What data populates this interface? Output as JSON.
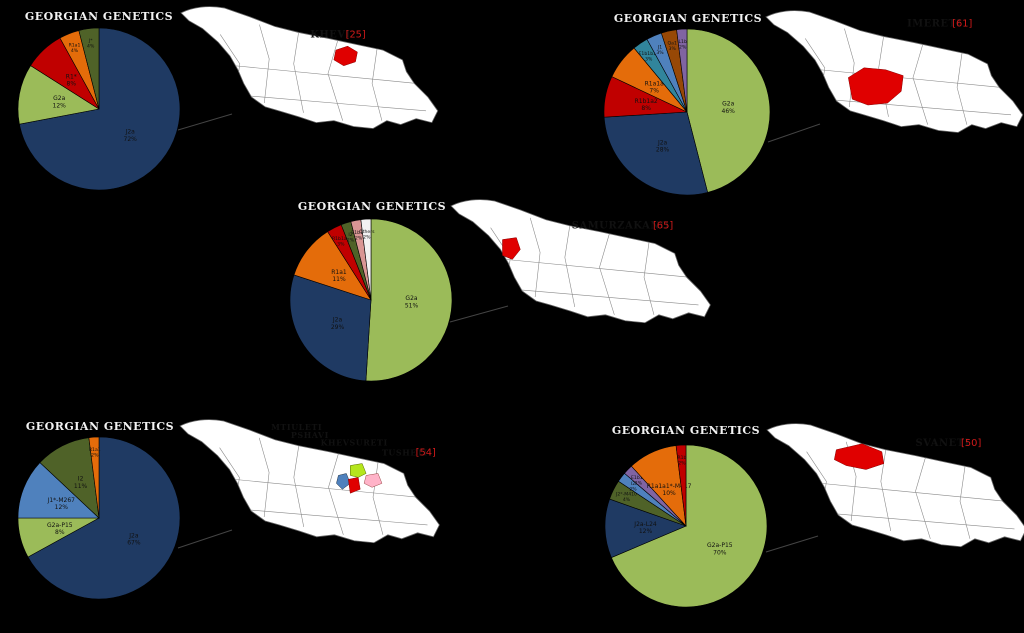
{
  "chart_data": [
    {
      "type": "pie",
      "title": "GEORGIAN GENETICS",
      "region": "KHEVI",
      "count": "[25]",
      "slices": [
        {
          "label": "J2a",
          "value": 72,
          "pct": "72%",
          "color": "#1f3a63"
        },
        {
          "label": "G2a",
          "value": 12,
          "pct": "12%",
          "color": "#9bbb59"
        },
        {
          "label": "R1*",
          "value": 8,
          "pct": "8%",
          "color": "#c00000"
        },
        {
          "label": "R1a1",
          "value": 4,
          "pct": "4%",
          "color": "#e46c0a"
        },
        {
          "label": "J*",
          "value": 4,
          "pct": "4%",
          "color": "#4f6228"
        }
      ]
    },
    {
      "type": "pie",
      "title": "GEORGIAN GENETICS",
      "region": "IMERETI",
      "count": "[61]",
      "slices": [
        {
          "label": "G2a",
          "value": 46,
          "pct": "46%",
          "color": "#9bbb59"
        },
        {
          "label": "J2a",
          "value": 28,
          "pct": "28%",
          "color": "#1f3a63"
        },
        {
          "label": "R1b1a2",
          "value": 8,
          "pct": "8%",
          "color": "#c00000"
        },
        {
          "label": "R1a1a",
          "value": 7,
          "pct": "7%",
          "color": "#e46c0a"
        },
        {
          "label": "E1b1b1a",
          "value": 3,
          "pct": "3%",
          "color": "#31859c"
        },
        {
          "label": "J1",
          "value": 3,
          "pct": "3%",
          "color": "#4f81bd"
        },
        {
          "label": "Qa1",
          "value": 3,
          "pct": "3%",
          "color": "#974806"
        },
        {
          "label": "L1b",
          "value": 2,
          "pct": "2%",
          "color": "#8064a2"
        }
      ]
    },
    {
      "type": "pie",
      "title": "GEORGIAN GENETICS",
      "region": "SAMURZAKANO",
      "count": "[65]",
      "slices": [
        {
          "label": "G2a",
          "value": 51,
          "pct": "51%",
          "color": "#9bbb59"
        },
        {
          "label": "J2a",
          "value": 29,
          "pct": "29%",
          "color": "#1f3a63"
        },
        {
          "label": "R1a1",
          "value": 11,
          "pct": "11%",
          "color": "#e46c0a"
        },
        {
          "label": "R1b1a2",
          "value": 3,
          "pct": "3%",
          "color": "#c00000"
        },
        {
          "label": "I2",
          "value": 2,
          "pct": "2%",
          "color": "#4f6228"
        },
        {
          "label": "E1b1b",
          "value": 2,
          "pct": "2%",
          "color": "#d99694"
        },
        {
          "label": "Others",
          "value": 2,
          "pct": "2%",
          "color": "#f2f2f2"
        }
      ]
    },
    {
      "type": "pie",
      "title": "GEORGIAN GENETICS",
      "regions": [
        "MTIULETI",
        "PSHAVI",
        "KHEVSURETI",
        "TUSHETI"
      ],
      "count": "[54]",
      "slices": [
        {
          "label": "J2a",
          "value": 67,
          "pct": "67%",
          "color": "#1f3a63"
        },
        {
          "label": "G2a-P15",
          "value": 8,
          "pct": "8%",
          "color": "#9bbb59"
        },
        {
          "label": "J1*-M267",
          "value": 12,
          "pct": "12%",
          "color": "#4f81bd"
        },
        {
          "label": "I2",
          "value": 11,
          "pct": "11%",
          "color": "#4f6228"
        },
        {
          "label": "R1a1",
          "value": 2,
          "pct": "2%",
          "color": "#e46c0a"
        }
      ]
    },
    {
      "type": "pie",
      "title": "GEORGIAN GENETICS",
      "region": "SVANETI",
      "count": "[50]",
      "slices": [
        {
          "label": "G2a-P15",
          "value": 70,
          "pct": "70%",
          "color": "#9bbb59"
        },
        {
          "label": "J2a-L24",
          "value": 12,
          "pct": "12%",
          "color": "#1f3a63"
        },
        {
          "label": "J2*-M410",
          "value": 4,
          "pct": "4%",
          "color": "#4f6228"
        },
        {
          "label": "I2",
          "value": 2,
          "pct": "2%",
          "color": "#4f81bd"
        },
        {
          "label": "E1b1b",
          "value": 2,
          "pct": "2%",
          "color": "#8064a2"
        },
        {
          "label": "R1a1a1*-M417",
          "value": 10,
          "pct": "10%",
          "color": "#e46c0a"
        },
        {
          "label": "R1b",
          "value": 2,
          "pct": "2%",
          "color": "#c00000"
        }
      ]
    }
  ]
}
